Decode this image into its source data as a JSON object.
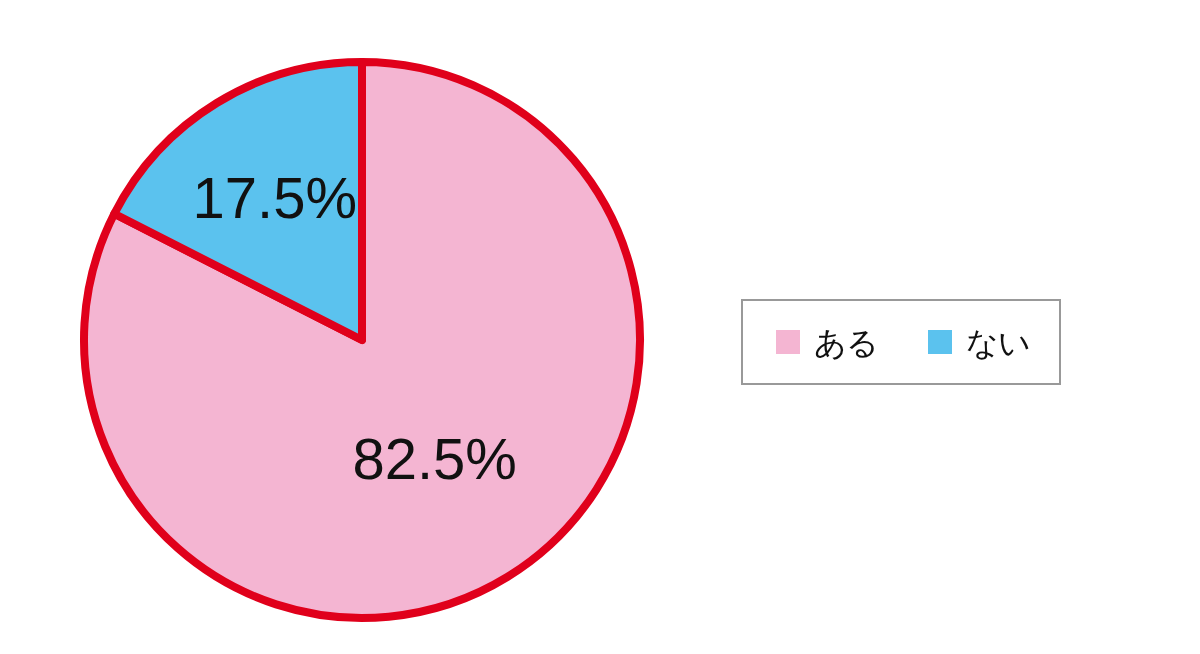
{
  "chart_data": {
    "type": "pie",
    "categories": [
      "ある",
      "ない"
    ],
    "values": [
      82.5,
      17.5
    ],
    "colors": [
      "#f4b5d2",
      "#5bc2ee"
    ],
    "value_labels": [
      "82.5%",
      "17.5%"
    ],
    "legend": "right"
  }
}
